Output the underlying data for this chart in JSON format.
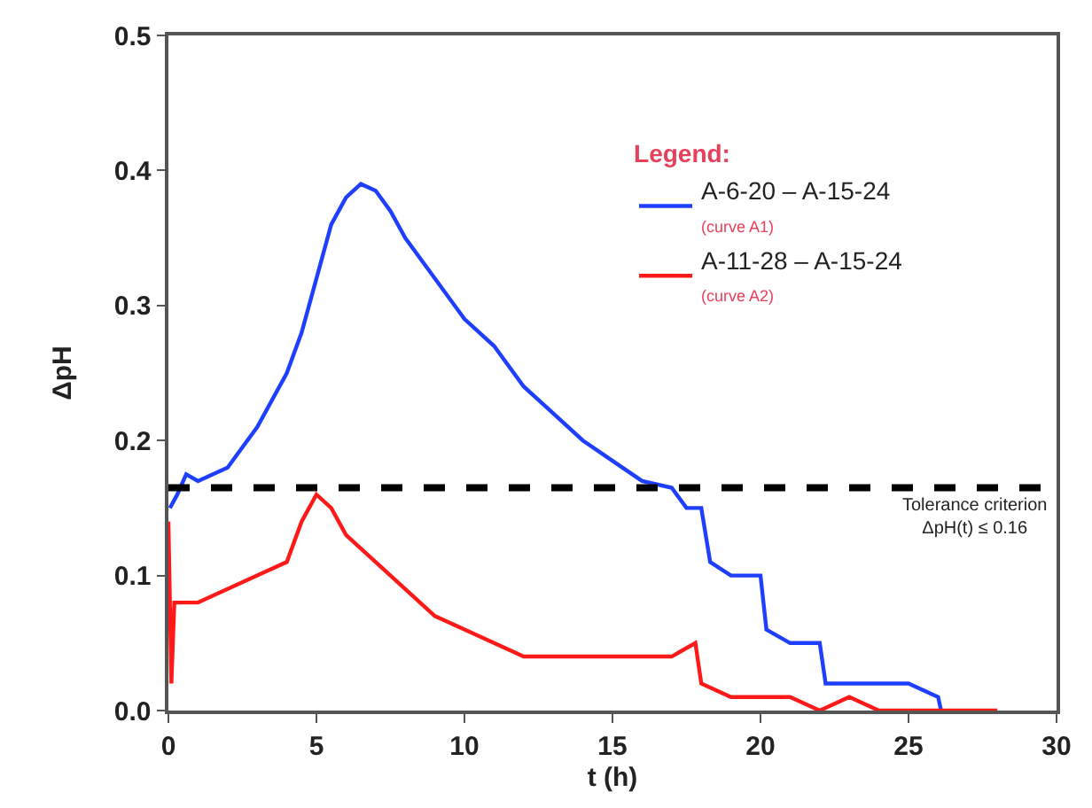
{
  "chart_data": {
    "type": "line",
    "xlabel": "t (h)",
    "ylabel": "ΔpH",
    "legend_title": "Legend:",
    "xlim": [
      0,
      30
    ],
    "xticks": [
      0,
      5,
      10,
      15,
      20,
      25,
      30
    ],
    "ylim": [
      0,
      0.5
    ],
    "yticks": [
      {
        "value": 0,
        "label": "0.0"
      },
      {
        "value": 0.1,
        "label": "0.1"
      },
      {
        "value": 0.2,
        "label": "0.2"
      },
      {
        "value": 0.3,
        "label": "0.3"
      },
      {
        "value": 0.4,
        "label": "0.4"
      },
      {
        "value": 0.5,
        "label": "0.5"
      }
    ],
    "legend": "top right",
    "marker": "none",
    "line_style": "solid",
    "series": [
      {
        "name": "A-6-20 – A-15-24\n(curve A1)",
        "color": "#1f3fff",
        "x": [
          0.05,
          0.3,
          0.6,
          1,
          2,
          3,
          4,
          4.5,
          5,
          5.5,
          6,
          6.5,
          7,
          7.5,
          8,
          9,
          10,
          11,
          12,
          13,
          14,
          15,
          16,
          17,
          17.5,
          18,
          18.3,
          19,
          20,
          20.2,
          21,
          22,
          22.2,
          23,
          25,
          26,
          26.1
        ],
        "values": [
          0.15,
          0.16,
          0.175,
          0.17,
          0.18,
          0.21,
          0.25,
          0.28,
          0.32,
          0.36,
          0.38,
          0.39,
          0.385,
          0.37,
          0.35,
          0.32,
          0.29,
          0.27,
          0.24,
          0.22,
          0.2,
          0.185,
          0.17,
          0.165,
          0.15,
          0.15,
          0.11,
          0.1,
          0.1,
          0.06,
          0.05,
          0.05,
          0.02,
          0.02,
          0.02,
          0.01,
          0.0
        ]
      },
      {
        "name": "A-11-28 – A-15-24\n(curve A2)",
        "color": "#ff1a1a",
        "x": [
          0,
          0.1,
          0.2,
          1,
          2,
          3,
          4,
          4.5,
          5,
          5.5,
          6,
          7,
          8,
          9,
          10,
          11,
          12,
          13,
          14,
          15,
          16,
          17,
          17.8,
          18,
          19,
          20,
          21,
          22,
          23,
          24,
          25,
          28
        ],
        "values": [
          0.14,
          0.02,
          0.08,
          0.08,
          0.09,
          0.1,
          0.11,
          0.14,
          0.16,
          0.15,
          0.13,
          0.11,
          0.09,
          0.07,
          0.06,
          0.05,
          0.04,
          0.04,
          0.04,
          0.04,
          0.04,
          0.04,
          0.05,
          0.02,
          0.01,
          0.01,
          0.01,
          0.0,
          0.01,
          0.0,
          0.0,
          0.0
        ]
      }
    ],
    "ref_lines": [
      {
        "axis": "y",
        "value": 0.165,
        "label": "Tolerance criterion\nΔpH(t) ≤ 0.16",
        "color": "#000000",
        "line_style": "dashed"
      }
    ]
  }
}
